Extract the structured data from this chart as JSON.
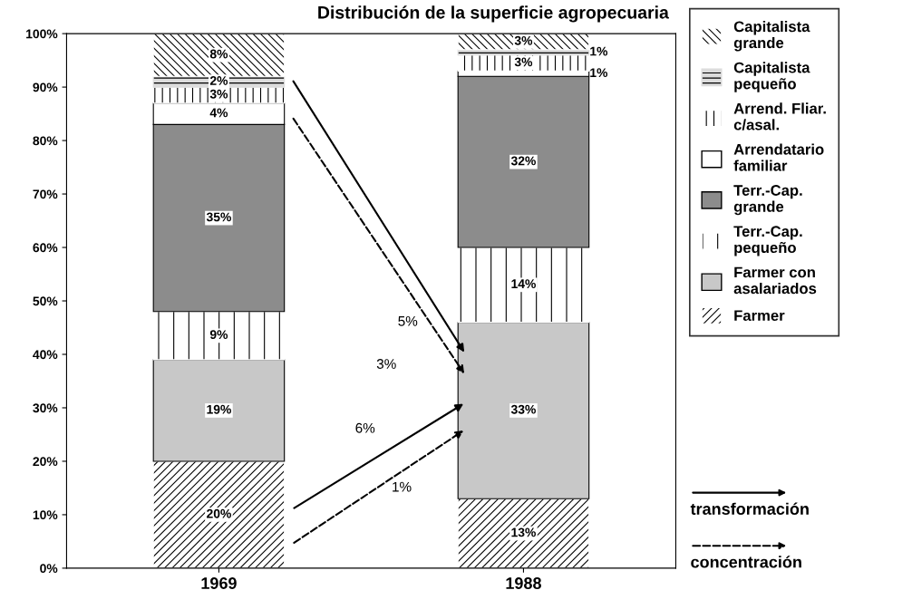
{
  "chart_data": {
    "type": "bar",
    "title": "Distribución de la superficie agropecuaria",
    "categories": [
      "1969",
      "1988"
    ],
    "stacked": true,
    "series": [
      {
        "name": "Farmer",
        "color": "#ffffff",
        "values": [
          20,
          13
        ],
        "value_labels": [
          "20%",
          "13%"
        ]
      },
      {
        "name": "Farmer con\nasalariados",
        "color": "#c8c8c8",
        "values": [
          19,
          33
        ],
        "value_labels": [
          "19%",
          "33%"
        ]
      },
      {
        "name": "Terr.-Cap.\npequeño",
        "color": "#ffffff",
        "values": [
          9,
          14
        ],
        "value_labels": [
          "9%",
          "14%"
        ]
      },
      {
        "name": "Terr.-Cap.\ngrande",
        "color": "#8c8c8c",
        "values": [
          35,
          32
        ],
        "value_labels": [
          "35%",
          "32%"
        ]
      },
      {
        "name": "Arrendatario\nfamiliar",
        "color": "#ffffff",
        "values": [
          4,
          1
        ],
        "value_labels": [
          "4%",
          "1%"
        ]
      },
      {
        "name": "Arrend. Fliar.\nc/asal.",
        "color": "#ffffff",
        "values": [
          3,
          3
        ],
        "value_labels": [
          "3%",
          "3%"
        ]
      },
      {
        "name": "Capitalista\npequeño",
        "color": "#dcdcdc",
        "values": [
          2,
          1
        ],
        "value_labels": [
          "2%",
          "1%"
        ]
      },
      {
        "name": "Capitalista\ngrande",
        "color": "#ffffff",
        "values": [
          8,
          3
        ],
        "value_labels": [
          "8%",
          "3%"
        ]
      }
    ],
    "ylim": [
      0,
      100
    ],
    "yticks": [
      {
        "value": 0,
        "label": "0%"
      },
      {
        "value": 10,
        "label": "10%"
      },
      {
        "value": 20,
        "label": "20%"
      },
      {
        "value": 30,
        "label": "30%"
      },
      {
        "value": 40,
        "label": "40%"
      },
      {
        "value": 50,
        "label": "50%"
      },
      {
        "value": 60,
        "label": "60%"
      },
      {
        "value": 70,
        "label": "70%"
      },
      {
        "value": 80,
        "label": "80%"
      },
      {
        "value": 90,
        "label": "90%"
      },
      {
        "value": 100,
        "label": "100%"
      }
    ],
    "grid": false,
    "legend": "right",
    "annotations": [
      "5%",
      "3%",
      "6%",
      "1%",
      "transformación",
      "concentración"
    ]
  }
}
